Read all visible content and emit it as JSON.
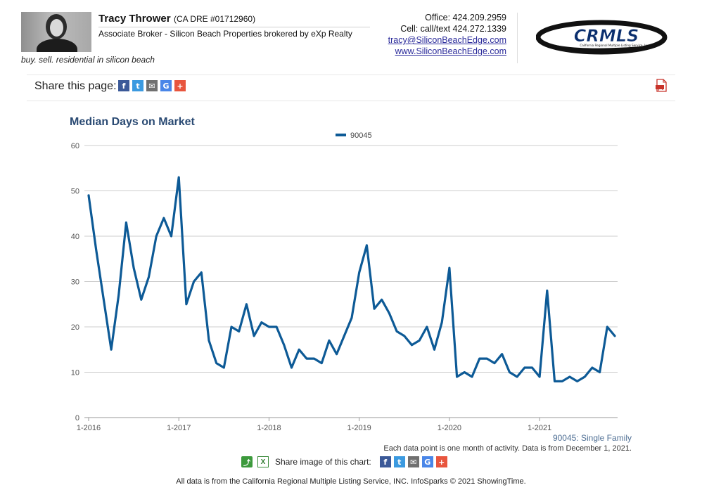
{
  "agent": {
    "name": "Tracy Thrower",
    "dre": "(CA DRE #01712960)",
    "title": "Associate Broker - Silicon Beach Properties brokered by eXp Realty",
    "tagline": "buy. sell. residential in silicon beach"
  },
  "contact": {
    "office": "Office: 424.209.2959",
    "cell": "Cell: call/text 424.272.1339",
    "email": "tracy@SiliconBeachEdge.com",
    "website": "www.SiliconBeachEdge.com"
  },
  "logo": {
    "text": "CRMLS",
    "subtext": "California Regional Multiple Listing Service, Inc."
  },
  "share_bar": {
    "label": "Share this page:",
    "icons": [
      "facebook-icon",
      "twitter-icon",
      "email-icon",
      "google-icon",
      "plus-icon"
    ]
  },
  "colors": {
    "series": "#0d5a96",
    "title": "#2a4a73",
    "grid": "#cccccc"
  },
  "chart_data": {
    "type": "line",
    "title": "Median Days on Market",
    "legend": {
      "position": "top-center"
    },
    "ylim": [
      0,
      60
    ],
    "yticks": [
      0,
      10,
      20,
      30,
      40,
      50,
      60
    ],
    "xticks": [
      "1-2016",
      "1-2017",
      "1-2018",
      "1-2019",
      "1-2020",
      "1-2021"
    ],
    "x_start": "1-2016",
    "x_end": "12-2021",
    "grid": true,
    "series": [
      {
        "name": "90045",
        "values": [
          49,
          37,
          26,
          15,
          27,
          43,
          33,
          26,
          31,
          40,
          44,
          40,
          53,
          25,
          30,
          32,
          17,
          12,
          11,
          20,
          19,
          25,
          18,
          21,
          20,
          20,
          16,
          11,
          15,
          13,
          13,
          12,
          17,
          14,
          18,
          22,
          32,
          38,
          24,
          26,
          23,
          19,
          18,
          16,
          17,
          20,
          15,
          21,
          33,
          9,
          10,
          9,
          13,
          13,
          12,
          14,
          10,
          9,
          11,
          11,
          9,
          28,
          8,
          8,
          9,
          8,
          9,
          11,
          10,
          20,
          18
        ]
      }
    ],
    "footnote": "90045: Single Family",
    "source_note": "Each data point is one month of activity. Data is from December 1, 2021."
  },
  "share_image": {
    "label": "Share image of this chart:"
  },
  "footer": {
    "text": "All data is from the California Regional Multiple Listing Service, INC. InfoSparks © 2021 ShowingTime."
  }
}
